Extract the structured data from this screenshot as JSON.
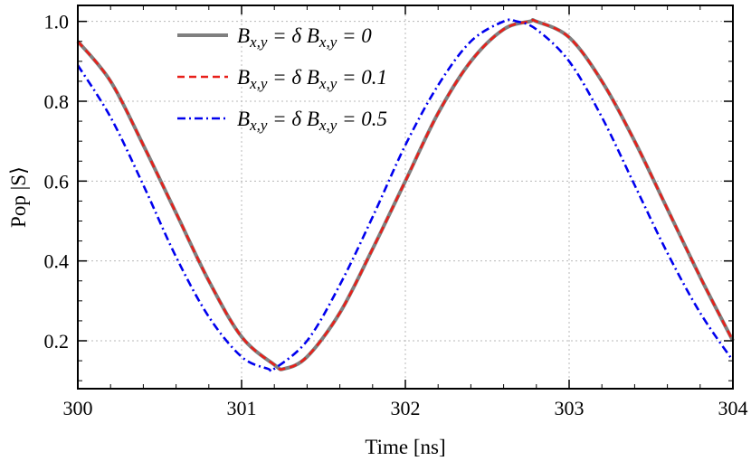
{
  "chart_data": {
    "type": "line",
    "title": "",
    "xlabel": "Time [ns]",
    "ylabel": "Pop |S⟩",
    "xlim": [
      300,
      304
    ],
    "ylim": [
      0.08,
      1.04
    ],
    "xticks": [
      300,
      301,
      302,
      303,
      304
    ],
    "xtick_labels": [
      "300",
      "301",
      "302",
      "303",
      "304"
    ],
    "yticks": [
      0.2,
      0.4,
      0.6,
      0.8,
      1.0
    ],
    "ytick_labels": [
      "0.2",
      "0.4",
      "0.6",
      "0.8",
      "1.0"
    ],
    "grid": true,
    "legend_position": "top-left",
    "series": [
      {
        "name": "B_{x,y} = δ B_{x,y} = 0",
        "color": "#7f7f7f",
        "dash": "solid",
        "x": [
          300.0,
          300.2,
          300.4,
          300.6,
          300.8,
          301.0,
          301.2,
          301.26,
          301.4,
          301.6,
          301.8,
          302.0,
          302.2,
          302.4,
          302.6,
          302.76,
          302.8,
          303.0,
          303.2,
          303.4,
          303.6,
          303.8,
          304.0
        ],
        "y": [
          0.95,
          0.85,
          0.69,
          0.52,
          0.35,
          0.21,
          0.14,
          0.13,
          0.16,
          0.27,
          0.43,
          0.6,
          0.77,
          0.9,
          0.98,
          1.0,
          1.0,
          0.96,
          0.85,
          0.7,
          0.53,
          0.36,
          0.2
        ]
      },
      {
        "name": "B_{x,y} = δ B_{x,y} = 0.1",
        "color": "#e8201a",
        "dash": "dashed",
        "x": [
          300.0,
          300.2,
          300.4,
          300.6,
          300.8,
          301.0,
          301.2,
          301.26,
          301.4,
          301.6,
          301.8,
          302.0,
          302.2,
          302.4,
          302.6,
          302.76,
          302.8,
          303.0,
          303.2,
          303.4,
          303.6,
          303.8,
          304.0
        ],
        "y": [
          0.95,
          0.85,
          0.69,
          0.52,
          0.35,
          0.21,
          0.14,
          0.13,
          0.16,
          0.27,
          0.43,
          0.6,
          0.77,
          0.9,
          0.98,
          1.0,
          1.0,
          0.96,
          0.85,
          0.7,
          0.53,
          0.36,
          0.2
        ]
      },
      {
        "name": "B_{x,y} = δ B_{x,y} = 0.5",
        "color": "#0000ee",
        "dash": "dash-dot",
        "x": [
          300.0,
          300.2,
          300.4,
          300.6,
          300.8,
          301.0,
          301.16,
          301.2,
          301.4,
          301.6,
          301.8,
          302.0,
          302.2,
          302.4,
          302.6,
          302.68,
          302.8,
          303.0,
          303.2,
          303.4,
          303.6,
          303.8,
          304.0
        ],
        "y": [
          0.89,
          0.76,
          0.59,
          0.41,
          0.26,
          0.16,
          0.13,
          0.13,
          0.2,
          0.34,
          0.51,
          0.69,
          0.84,
          0.95,
          1.0,
          1.0,
          0.98,
          0.9,
          0.76,
          0.59,
          0.42,
          0.27,
          0.15
        ]
      }
    ]
  }
}
